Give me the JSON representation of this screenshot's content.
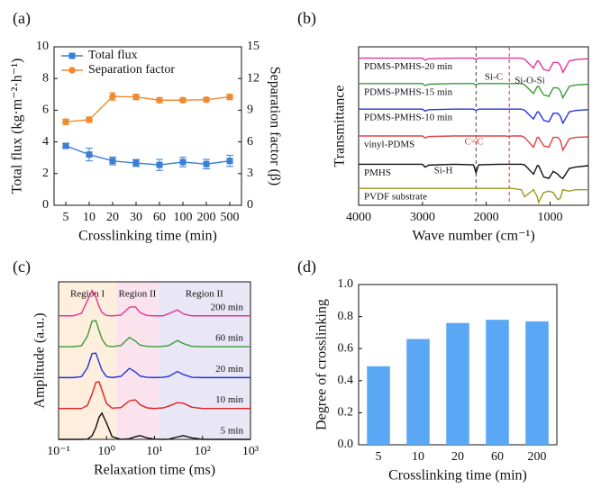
{
  "chart_data": [
    {
      "type": "line",
      "panel_label": "(a)",
      "categories": [
        "5",
        "10",
        "20",
        "30",
        "60",
        "100",
        "200",
        "500"
      ],
      "xlabel": "Crosslinking time (min)",
      "ylabel": "Total flux (kg·m⁻²·h⁻¹)",
      "y2label": "Separation factor (β)",
      "ylim": [
        0,
        10
      ],
      "yticks": [
        0,
        2,
        4,
        6,
        8,
        10
      ],
      "y2lim": [
        0,
        15
      ],
      "y2ticks": [
        0,
        3,
        6,
        9,
        12,
        15
      ],
      "legend": "upper left",
      "series": [
        {
          "name": "Total flux",
          "color": "#3a7fd5",
          "marker": "square",
          "values": [
            3.75,
            3.2,
            2.8,
            2.67,
            2.55,
            2.73,
            2.6,
            2.8
          ],
          "errors": [
            0.15,
            0.4,
            0.25,
            0.22,
            0.35,
            0.3,
            0.3,
            0.35
          ]
        },
        {
          "name": "Separation factor",
          "color": "#f08a30",
          "marker": "circle",
          "axis": "y2",
          "values": [
            7.9,
            8.1,
            10.3,
            10.25,
            9.95,
            9.95,
            10.0,
            10.25
          ],
          "errors": [
            0.25,
            0.25,
            0.35,
            0.25,
            0.25,
            0.2,
            0.2,
            0.25
          ]
        }
      ]
    },
    {
      "type": "line",
      "panel_label": "(b)",
      "xlabel": "Wave number (cm⁻¹)",
      "ylabel": "Transmittance",
      "xlim": [
        4000,
        400
      ],
      "xticks": [
        4000,
        3000,
        2000,
        1000
      ],
      "ylim": [
        0,
        5.6
      ],
      "trace_labels": "left",
      "x": [
        4000,
        3500,
        3000,
        2960,
        2900,
        2500,
        2200,
        2160,
        2120,
        1800,
        1700,
        1640,
        1600,
        1450,
        1400,
        1260,
        1200,
        1180,
        1100,
        1020,
        950,
        880,
        840,
        800,
        700,
        600,
        400
      ],
      "vlines": [
        {
          "x": 2160,
          "color": "#444444"
        },
        {
          "x": 1640,
          "color": "#e03030"
        }
      ],
      "annotations": [
        {
          "text": "Si-H",
          "color": "#222222"
        },
        {
          "text": "C=C",
          "color": "#e03030"
        },
        {
          "text": "Si-C",
          "color": "#222222"
        },
        {
          "text": "Si-O-Si",
          "color": "#222222"
        }
      ],
      "series": [
        {
          "name": "PDMS-PMHS-20 min",
          "color": "#e6339b",
          "values": [
            5.2,
            5.2,
            5.2,
            5.13,
            5.18,
            5.2,
            5.2,
            5.16,
            5.2,
            5.2,
            5.2,
            5.2,
            5.2,
            5.2,
            5.16,
            4.85,
            5.1,
            5.1,
            4.8,
            4.75,
            5.05,
            5.05,
            4.95,
            4.7,
            5.1,
            5.15,
            5.18
          ]
        },
        {
          "name": "PDMS-PMHS-15 min",
          "color": "#3a9a3a",
          "values": [
            4.3,
            4.3,
            4.3,
            4.23,
            4.28,
            4.3,
            4.3,
            4.25,
            4.3,
            4.3,
            4.3,
            4.3,
            4.3,
            4.3,
            4.26,
            3.95,
            4.2,
            4.2,
            3.9,
            3.85,
            4.15,
            4.15,
            4.05,
            3.8,
            4.2,
            4.25,
            4.28
          ]
        },
        {
          "name": "PDMS-PMHS-10 min",
          "color": "#2233dd",
          "values": [
            3.4,
            3.4,
            3.4,
            3.33,
            3.38,
            3.4,
            3.4,
            3.35,
            3.4,
            3.4,
            3.4,
            3.4,
            3.4,
            3.4,
            3.36,
            3.05,
            3.3,
            3.3,
            3.0,
            2.95,
            3.25,
            3.25,
            3.15,
            2.9,
            3.3,
            3.35,
            3.38
          ]
        },
        {
          "name": "vinyl-PDMS",
          "color": "#e04040",
          "values": [
            2.45,
            2.45,
            2.45,
            2.38,
            2.43,
            2.45,
            2.45,
            2.45,
            2.45,
            2.45,
            2.45,
            2.43,
            2.45,
            2.45,
            2.4,
            2.05,
            2.4,
            2.4,
            2.1,
            2.05,
            2.4,
            2.4,
            2.3,
            1.95,
            2.35,
            2.4,
            2.42
          ]
        },
        {
          "name": "PMHS",
          "color": "#111111",
          "values": [
            1.45,
            1.45,
            1.45,
            1.35,
            1.42,
            1.45,
            1.43,
            1.15,
            1.43,
            1.45,
            1.45,
            1.45,
            1.45,
            1.45,
            1.43,
            1.1,
            1.4,
            1.4,
            1.0,
            0.95,
            1.2,
            1.1,
            1.0,
            0.95,
            1.3,
            1.35,
            1.4
          ]
        },
        {
          "name": "PVDF substrate",
          "color": "#9a9a20",
          "values": [
            0.6,
            0.6,
            0.6,
            0.6,
            0.6,
            0.6,
            0.6,
            0.6,
            0.6,
            0.6,
            0.6,
            0.6,
            0.6,
            0.55,
            0.3,
            0.55,
            0.3,
            0.1,
            0.45,
            0.5,
            0.45,
            0.2,
            0.25,
            0.55,
            0.5,
            0.55,
            0.55
          ]
        }
      ]
    },
    {
      "type": "line",
      "panel_label": "(c)",
      "xlabel": "Relaxation time (ms)",
      "ylabel": "Amplitude (a.u.)",
      "xlog": true,
      "xlim": [
        0.1,
        1000
      ],
      "xticks": [
        {
          "value": 0.1,
          "label": "10⁻¹"
        },
        {
          "value": 1,
          "label": "10⁰"
        },
        {
          "value": 10,
          "label": "10¹"
        },
        {
          "value": 100,
          "label": "10²"
        },
        {
          "value": 1000,
          "label": "10³"
        }
      ],
      "ylim": [
        0,
        5.1
      ],
      "trace_labels": "right",
      "regions": [
        {
          "label": "Region I",
          "from": 0.1,
          "to": 1.6,
          "color": "#fdeedd"
        },
        {
          "label": "Region II",
          "from": 1.6,
          "to": 12,
          "color": "#fbe3ee"
        },
        {
          "label": "Region II",
          "from": 12,
          "to": 1000,
          "color": "#e9e7f6"
        }
      ],
      "x": [
        0.1,
        0.2,
        0.3,
        0.4,
        0.5,
        0.6,
        0.7,
        0.8,
        1,
        1.3,
        2,
        3,
        4,
        5,
        7,
        10,
        15,
        20,
        30,
        40,
        60,
        100,
        1000
      ],
      "series": [
        {
          "name": "200 min",
          "color": "#e6339b",
          "values": [
            4,
            4,
            4.08,
            4.5,
            4.82,
            4.6,
            4.29,
            4.11,
            4.01,
            4,
            4.02,
            4.28,
            4.29,
            4.1,
            4.01,
            4,
            4,
            4.07,
            4.19,
            4.06,
            4,
            4,
            4
          ]
        },
        {
          "name": "60 min",
          "color": "#3a9a3a",
          "values": [
            3,
            3,
            3.03,
            3.34,
            3.83,
            3.84,
            3.52,
            3.25,
            3.03,
            3,
            3.04,
            3.3,
            3.18,
            3.05,
            3.01,
            3,
            3.01,
            3.04,
            3.2,
            3.1,
            3.01,
            3,
            3
          ]
        },
        {
          "name": "20 min",
          "color": "#2233dd",
          "values": [
            2,
            2,
            2.03,
            2.32,
            2.78,
            2.79,
            2.49,
            2.24,
            2.03,
            2,
            2.04,
            2.3,
            2.18,
            2.05,
            2.01,
            2,
            2.01,
            2.04,
            2.2,
            2.1,
            2.01,
            2,
            2
          ]
        },
        {
          "name": "10 min",
          "color": "#e02020",
          "values": [
            1,
            1,
            1,
            1.1,
            1.47,
            1.85,
            1.86,
            1.6,
            1.16,
            1.01,
            1.03,
            1.25,
            1.28,
            1.12,
            1.02,
            1,
            1.02,
            1.08,
            1.19,
            1.17,
            1.04,
            1,
            1
          ]
        },
        {
          "name": "5 min",
          "color": "#111111",
          "values": [
            0,
            0,
            0,
            0.01,
            0.12,
            0.39,
            0.72,
            0.85,
            0.53,
            0.09,
            0,
            0.02,
            0.09,
            0.12,
            0.05,
            0.01,
            0,
            0.01,
            0.08,
            0.12,
            0.05,
            0,
            0
          ]
        }
      ]
    },
    {
      "type": "bar",
      "panel_label": "(d)",
      "categories": [
        "5",
        "10",
        "20",
        "60",
        "200"
      ],
      "values": [
        0.49,
        0.66,
        0.76,
        0.78,
        0.77
      ],
      "color": "#5aa8f5",
      "xlabel": "Crosslinking time (min)",
      "ylabel": "Degree of crosslinking",
      "ylim": [
        0,
        1
      ],
      "yticks": [
        {
          "value": 0,
          "label": "0.0"
        },
        0.2,
        0.4,
        0.6,
        0.8,
        {
          "value": 1,
          "label": "1.0"
        }
      ]
    }
  ]
}
